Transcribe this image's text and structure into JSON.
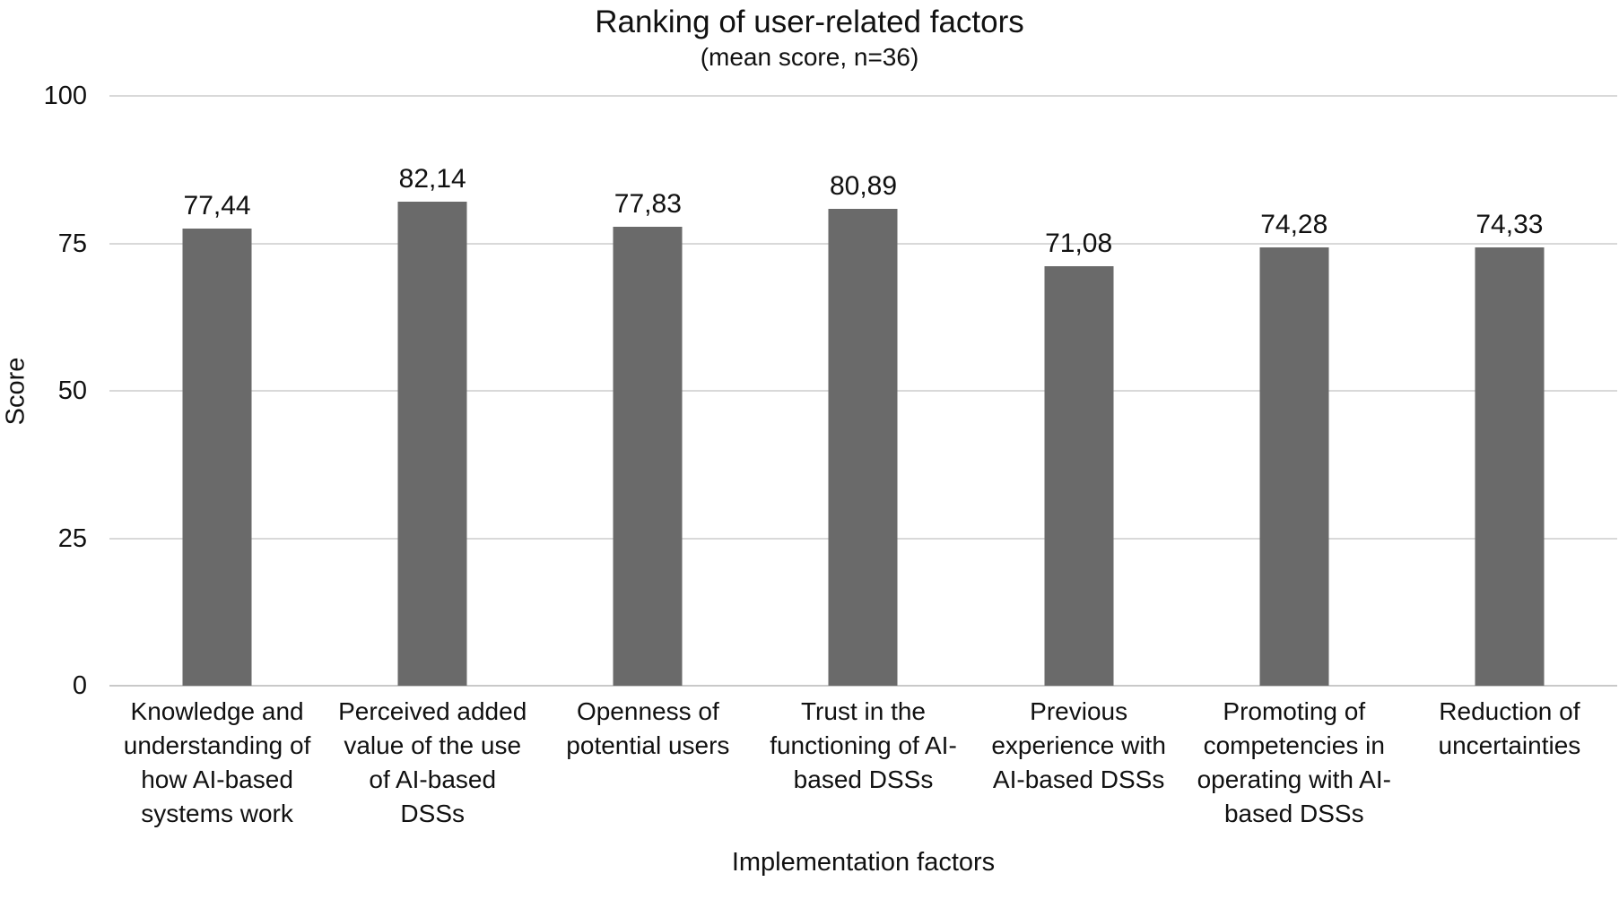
{
  "figure": {
    "title": "Ranking of user-related factors",
    "subtitle": "(mean score, n=36)"
  },
  "chart_data": {
    "type": "bar",
    "title": "Ranking of user-related factors",
    "subtitle": "(mean score, n=36)",
    "xlabel": "Implementation factors",
    "ylabel": "Score",
    "ylim": [
      0,
      100
    ],
    "yticks": [
      100,
      75,
      50,
      25,
      0
    ],
    "grid": "horizontal",
    "legend": "none",
    "decimal_separator": ",",
    "categories": [
      "Knowledge and understanding of how AI-based systems work",
      "Perceived added value of the use of AI-based DSSs",
      "Openness of potential users",
      "Trust in the functioning of AI-based DSSs",
      "Previous experience with AI-based DSSs",
      "Promoting of competencies in operating with AI-based DSSs",
      "Reduction of uncertainties"
    ],
    "category_tick_lines": [
      "Knowledge and\nunderstanding of\nhow AI-based\nsystems work",
      "Perceived added\nvalue of the use\nof AI-based\nDSSs",
      "Openness of\npotential users",
      "Trust in the\nfunctioning of AI-\nbased DSSs",
      "Previous\nexperience with\nAI-based DSSs",
      "Promoting of\ncompetencies in\noperating with AI-\nbased DSSs",
      "Reduction of\nuncertainties"
    ],
    "values": [
      77.44,
      82.14,
      77.83,
      80.89,
      71.08,
      74.28,
      74.33
    ],
    "value_labels": [
      "77,44",
      "82,14",
      "77,83",
      "80,89",
      "71,08",
      "74,28",
      "74,33"
    ],
    "colors": {
      "bar": "#6a6a6a",
      "gridline": "#d9d9d9",
      "baseline": "#c9c9c9",
      "text": "#111111",
      "background": "#ffffff"
    }
  }
}
